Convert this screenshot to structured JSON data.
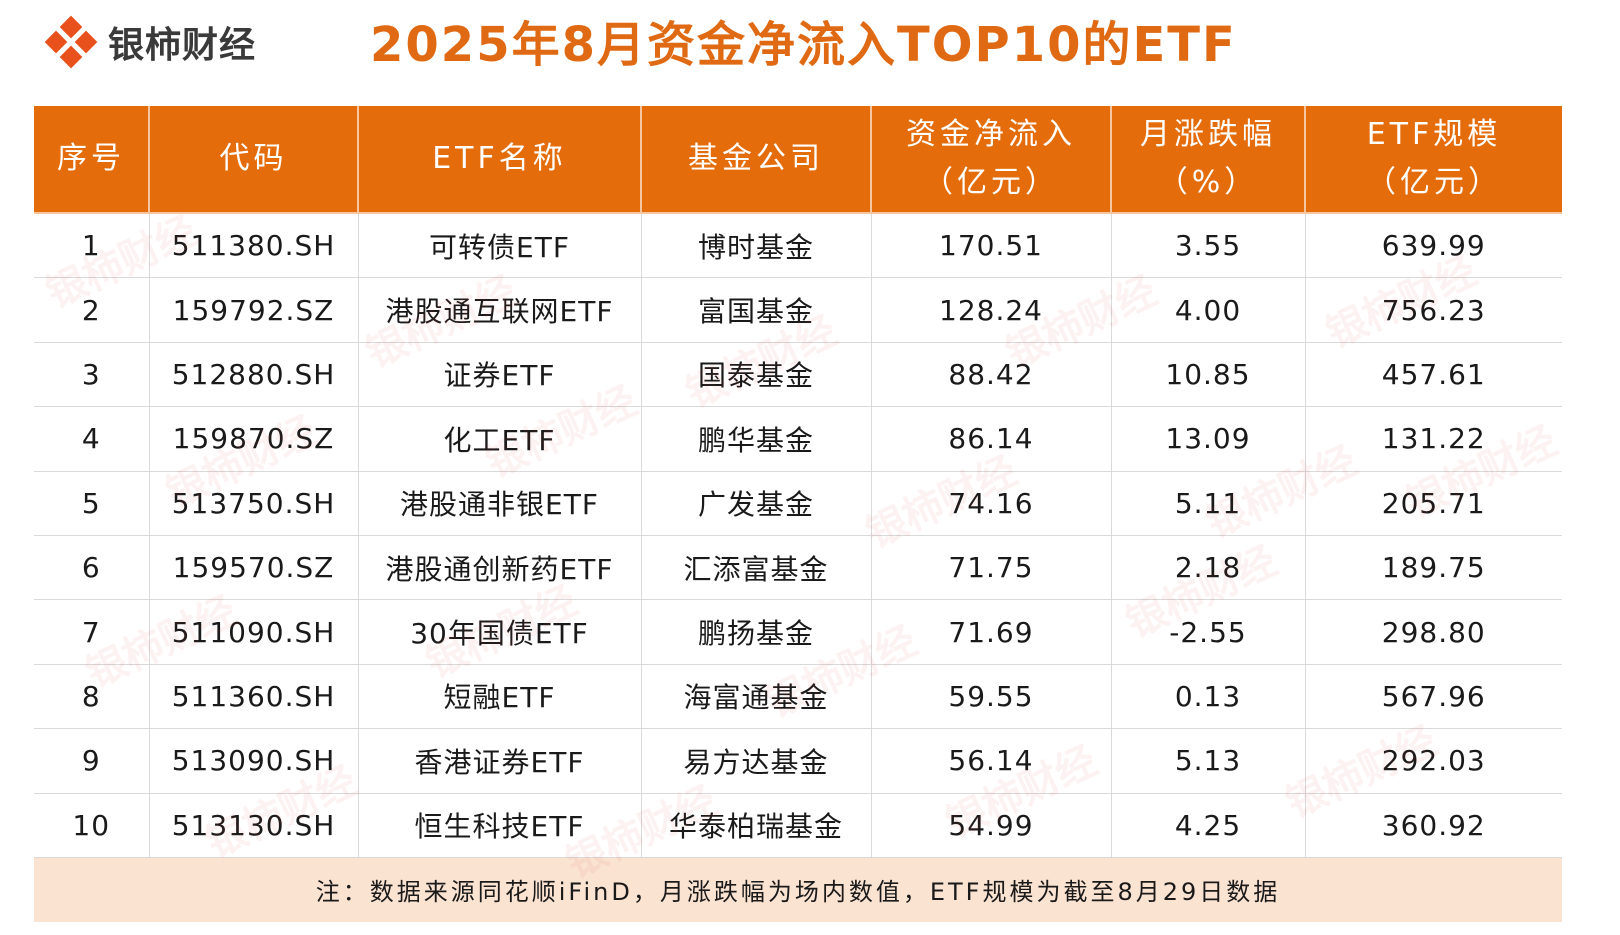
{
  "brand": {
    "name": "银柿财经",
    "color": "#e8501c"
  },
  "title": "2025年8月资金净流入TOP10的ETF",
  "colors": {
    "header_bg": "#e46c0a",
    "title": "#e06a14",
    "note_bg": "#fbe3d2"
  },
  "table": {
    "headers": [
      {
        "line1": "序号",
        "line2": ""
      },
      {
        "line1": "代码",
        "line2": ""
      },
      {
        "line1": "ETF名称",
        "line2": ""
      },
      {
        "line1": "基金公司",
        "line2": ""
      },
      {
        "line1": "资金净流入",
        "line2": "（亿元）"
      },
      {
        "line1": "月涨跌幅",
        "line2": "（%）"
      },
      {
        "line1": "ETF规模",
        "line2": "（亿元）"
      }
    ],
    "rows": [
      [
        "1",
        "511380.SH",
        "可转债ETF",
        "博时基金",
        "170.51",
        "3.55",
        "639.99"
      ],
      [
        "2",
        "159792.SZ",
        "港股通互联网ETF",
        "富国基金",
        "128.24",
        "4.00",
        "756.23"
      ],
      [
        "3",
        "512880.SH",
        "证券ETF",
        "国泰基金",
        "88.42",
        "10.85",
        "457.61"
      ],
      [
        "4",
        "159870.SZ",
        "化工ETF",
        "鹏华基金",
        "86.14",
        "13.09",
        "131.22"
      ],
      [
        "5",
        "513750.SH",
        "港股通非银ETF",
        "广发基金",
        "74.16",
        "5.11",
        "205.71"
      ],
      [
        "6",
        "159570.SZ",
        "港股通创新药ETF",
        "汇添富基金",
        "71.75",
        "2.18",
        "189.75"
      ],
      [
        "7",
        "511090.SH",
        "30年国债ETF",
        "鹏扬基金",
        "71.69",
        "-2.55",
        "298.80"
      ],
      [
        "8",
        "511360.SH",
        "短融ETF",
        "海富通基金",
        "59.55",
        "0.13",
        "567.96"
      ],
      [
        "9",
        "513090.SH",
        "香港证券ETF",
        "易方达基金",
        "56.14",
        "5.13",
        "292.03"
      ],
      [
        "10",
        "513130.SH",
        "恒生科技ETF",
        "华泰柏瑞基金",
        "54.99",
        "4.25",
        "360.92"
      ]
    ],
    "note": "注：数据来源同花顺iFinD，月涨跌幅为场内数值，ETF规模为截至8月29日数据"
  }
}
